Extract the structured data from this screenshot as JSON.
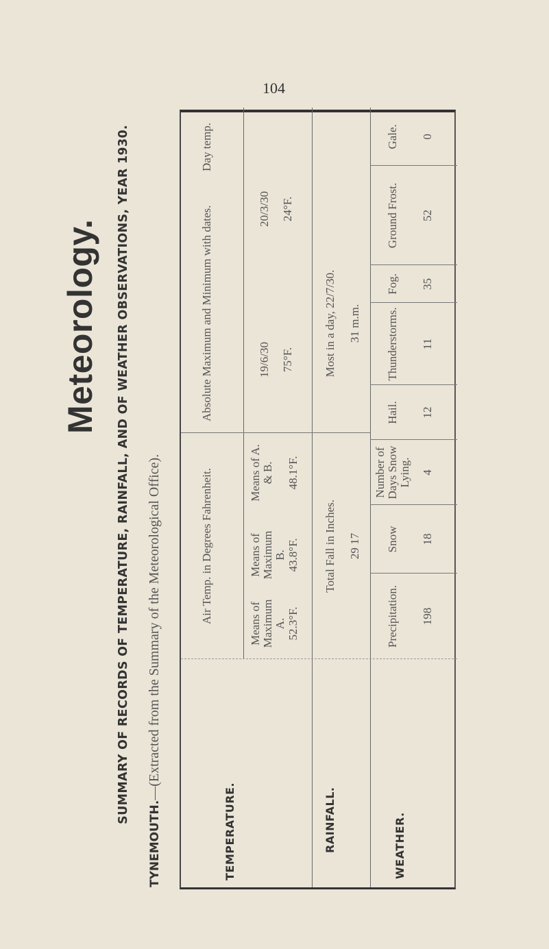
{
  "page_number": "104",
  "title": "Meteorology.",
  "summary": "SUMMARY OF RECORDS OF TEMPERATURE, RAINFALL, AND OF WEATHER OBSERVATIONS, YEAR 1930.",
  "source": {
    "place": "TYNEMOUTH.",
    "text": "—(Extracted from the Summary of the Meteorological Office)."
  },
  "temperature": {
    "label": "TEMPERATURE.",
    "air_temp_header": "Air Temp. in Degrees Fahrenheit.",
    "mean_max_a_label": "Means of Maximum A.",
    "mean_max_a_value": "52.3°F.",
    "mean_max_b_label": "Means of Maximum B.",
    "mean_max_b_value": "43.8°F.",
    "mean_ab_label": "Means of A. & B.",
    "mean_ab_value": "48.1°F.",
    "absolute_header": "Absolute Maximum and Minimum with dates.",
    "day_temp_label": "Day temp.",
    "max_date": "19/6/30",
    "max_value": "75°F.",
    "min_date": "20/3/30",
    "min_value": "24°F."
  },
  "rainfall": {
    "label": "RAINFALL.",
    "total_header": "Total Fall in Inches.",
    "total_value": "29 17",
    "most_header": "Most in a day, 22/7/30.",
    "most_value": "31 m.m."
  },
  "weather": {
    "label": "WEATHER.",
    "items": [
      {
        "label": "Precipitation.",
        "value": "198"
      },
      {
        "label": "Snow",
        "value": "18"
      },
      {
        "label": "Number of Days Snow Lying.",
        "value": "4"
      },
      {
        "label": "Hail.",
        "value": "12"
      },
      {
        "label": "Thunderstorms.",
        "value": "11"
      },
      {
        "label": "Fog.",
        "value": "35"
      },
      {
        "label": "Ground Frost.",
        "value": "52"
      },
      {
        "label": "Gale.",
        "value": "0"
      }
    ]
  }
}
